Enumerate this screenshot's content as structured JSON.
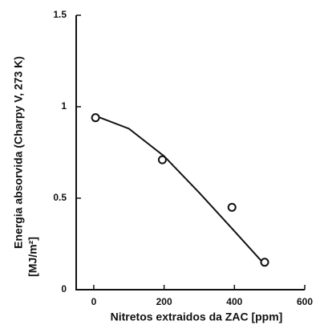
{
  "chart_data": {
    "type": "scatter",
    "x_label": "Nitretos extraidos da ZAC [ppm]",
    "y_label": [
      "Energia absorvida (Charpy V, 273 K)",
      "[MJ/m²]"
    ],
    "x": [
      5,
      195,
      393,
      486
    ],
    "values": [
      0.94,
      0.71,
      0.45,
      0.15
    ],
    "color": "#111111",
    "fit": {
      "x": [
        5,
        100,
        200,
        300,
        400,
        480
      ],
      "values": [
        0.95,
        0.88,
        0.73,
        0.53,
        0.32,
        0.15
      ]
    },
    "xlim": [
      -50,
      600
    ],
    "xticks": [
      0,
      200,
      400,
      600
    ],
    "ylim": [
      0,
      1.5
    ],
    "yticks": [
      0,
      0.5,
      1,
      1.5
    ]
  }
}
